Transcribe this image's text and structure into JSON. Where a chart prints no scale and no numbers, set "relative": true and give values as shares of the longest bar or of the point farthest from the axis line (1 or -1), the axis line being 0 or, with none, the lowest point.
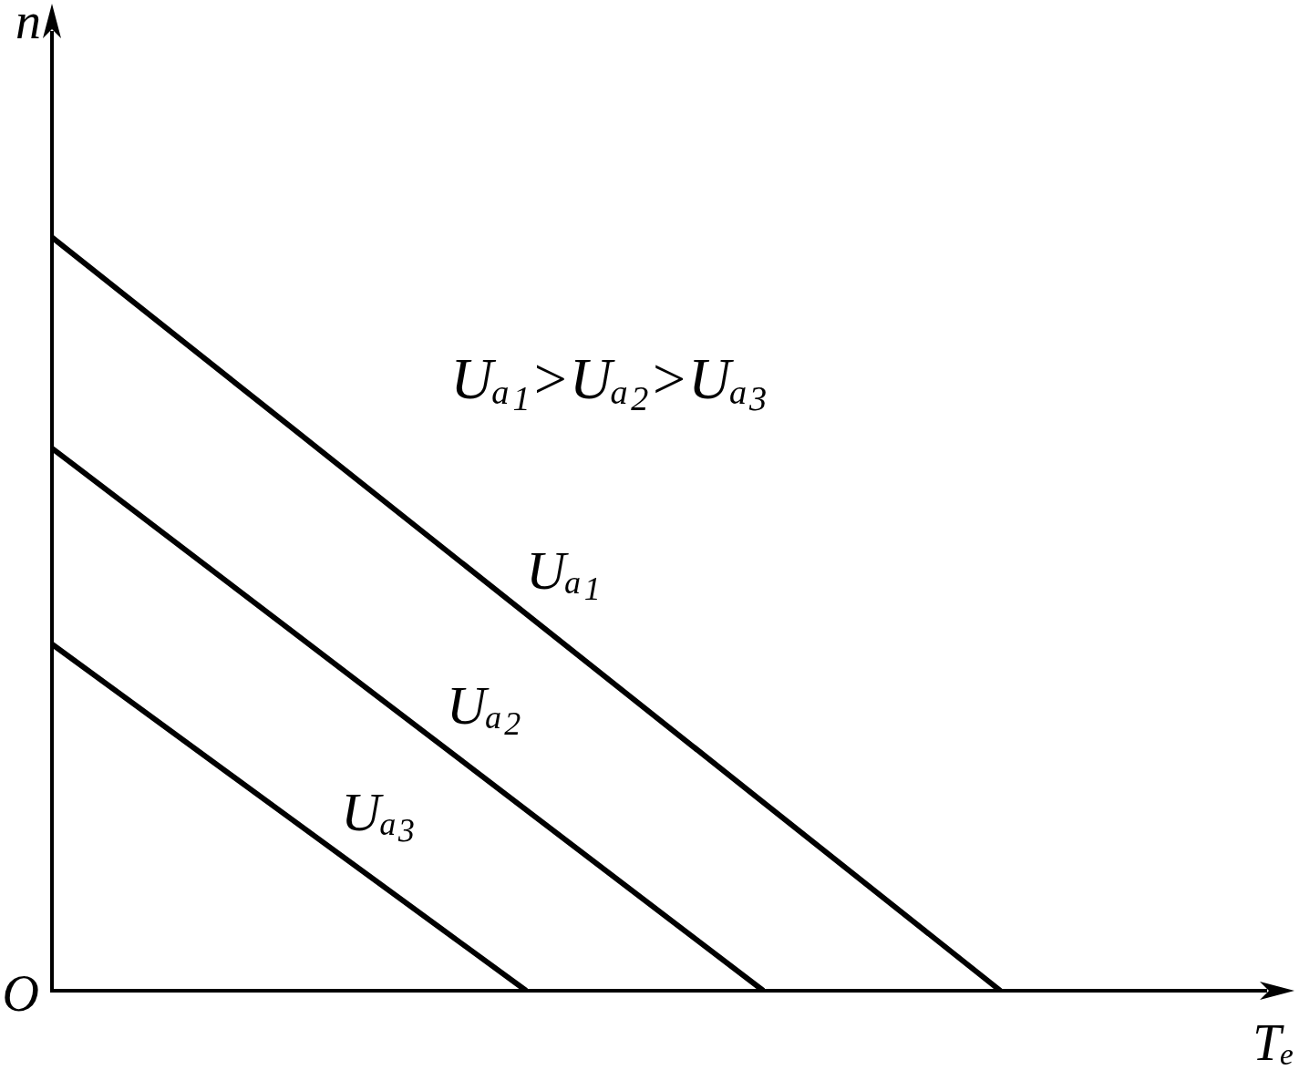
{
  "chart_data": {
    "type": "line",
    "relative": true,
    "xlabel": "Tₑ",
    "ylabel": "n",
    "annotations": [
      "Uₐ₁>Uₐ₂>Uₐ₃",
      "O"
    ],
    "categories": [
      null,
      null,
      null,
      null,
      null
    ],
    "series": [
      {
        "name": "Uₐ₁",
        "color": "#000000",
        "values": [
          1,
          0.75,
          0.5,
          0.25,
          0
        ]
      },
      {
        "name": "Uₐ₂",
        "color": "#000000",
        "values": [
          0.72,
          0.48,
          0.24,
          0,
          null
        ]
      },
      {
        "name": "Uₐ₃",
        "color": "#000000",
        "values": [
          0.46,
          0.23,
          0,
          null,
          null
        ]
      }
    ]
  }
}
